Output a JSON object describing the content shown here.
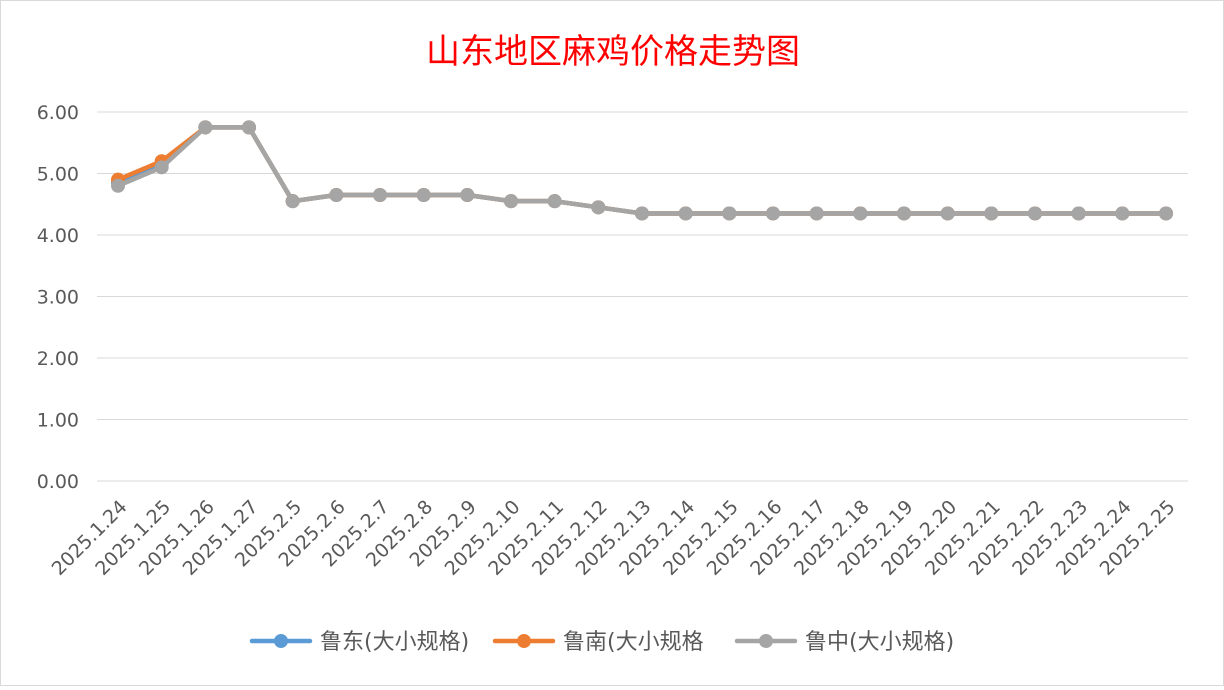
{
  "chart_data": {
    "type": "line",
    "title": "山东地区麻鸡价格走势图",
    "title_color": "#ff0000",
    "xlabel": "",
    "ylabel": "",
    "ylim": [
      0,
      6
    ],
    "y_ticks": [
      "0.00",
      "1.00",
      "2.00",
      "3.00",
      "4.00",
      "5.00",
      "6.00"
    ],
    "grid": true,
    "legend_position": "bottom",
    "categories": [
      "2025.1.24",
      "2025.1.25",
      "2025.1.26",
      "2025.1.27",
      "2025.2.5",
      "2025.2.6",
      "2025.2.7",
      "2025.2.8",
      "2025.2.9",
      "2025.2.10",
      "2025.2.11",
      "2025.2.12",
      "2025.2.13",
      "2025.2.14",
      "2025.2.15",
      "2025.2.16",
      "2025.2.17",
      "2025.2.18",
      "2025.2.19",
      "2025.2.20",
      "2025.2.21",
      "2025.2.22",
      "2025.2.23",
      "2025.2.24",
      "2025.2.25"
    ],
    "series": [
      {
        "name": "鲁东(大小规格)",
        "color": "#5b9bd5",
        "values": [
          4.85,
          5.15,
          5.75,
          5.75,
          4.55,
          4.65,
          4.65,
          4.65,
          4.65,
          4.55,
          4.55,
          4.45,
          4.35,
          4.35,
          4.35,
          4.35,
          4.35,
          4.35,
          4.35,
          4.35,
          4.35,
          4.35,
          4.35,
          4.35,
          4.35
        ]
      },
      {
        "name": "鲁南(大小规格",
        "color": "#ed7d31",
        "values": [
          4.9,
          5.2,
          5.75,
          5.75,
          4.55,
          4.65,
          4.65,
          4.65,
          4.65,
          4.55,
          4.55,
          4.45,
          4.35,
          4.35,
          4.35,
          4.35,
          4.35,
          4.35,
          4.35,
          4.35,
          4.35,
          4.35,
          4.35,
          4.35,
          4.35
        ]
      },
      {
        "name": "鲁中(大小规格)",
        "color": "#a5a5a5",
        "values": [
          4.8,
          5.1,
          5.75,
          5.75,
          4.55,
          4.65,
          4.65,
          4.65,
          4.65,
          4.55,
          4.55,
          4.45,
          4.35,
          4.35,
          4.35,
          4.35,
          4.35,
          4.35,
          4.35,
          4.35,
          4.35,
          4.35,
          4.35,
          4.35,
          4.35
        ]
      }
    ]
  }
}
